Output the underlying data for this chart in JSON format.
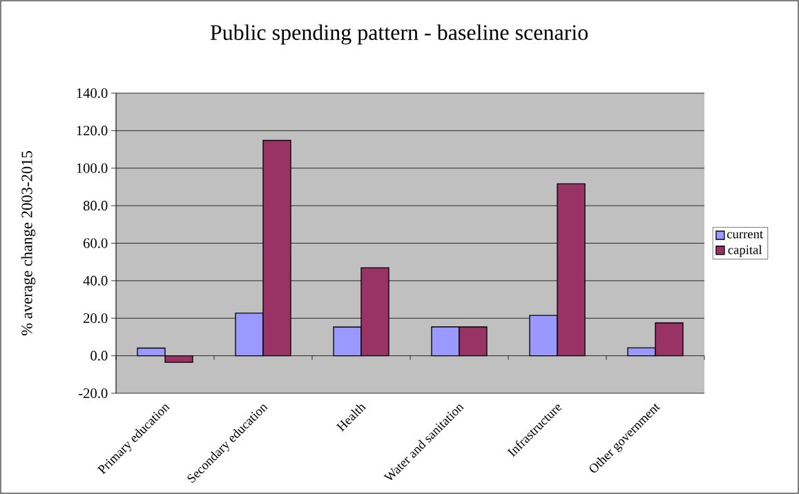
{
  "chart_data": {
    "type": "bar",
    "title": "Public spending pattern - baseline scenario",
    "ylabel": "% average change 2003-2015",
    "categories": [
      "Primary education",
      "Secondary education",
      "Health",
      "Water and sanitation",
      "Infrastructure",
      "Other government"
    ],
    "series": [
      {
        "name": "current",
        "color": "#9999ff",
        "values": [
          4.1,
          22.7,
          15.3,
          15.4,
          21.5,
          4.2
        ]
      },
      {
        "name": "capital",
        "color": "#993366",
        "values": [
          -3.5,
          114.8,
          46.9,
          15.4,
          91.7,
          17.5
        ]
      }
    ],
    "ylim": [
      -20,
      140
    ],
    "yticks": [
      {
        "value": -20,
        "label": "-20.0"
      },
      {
        "value": 0,
        "label": "0.0"
      },
      {
        "value": 20,
        "label": "20.0"
      },
      {
        "value": 40,
        "label": "40.0"
      },
      {
        "value": 60,
        "label": "60.0"
      },
      {
        "value": 80,
        "label": "80.0"
      },
      {
        "value": 100,
        "label": "100.0"
      },
      {
        "value": 120,
        "label": "120.0"
      },
      {
        "value": 140,
        "label": "140.0"
      }
    ],
    "grid": "y",
    "legend": "right"
  }
}
